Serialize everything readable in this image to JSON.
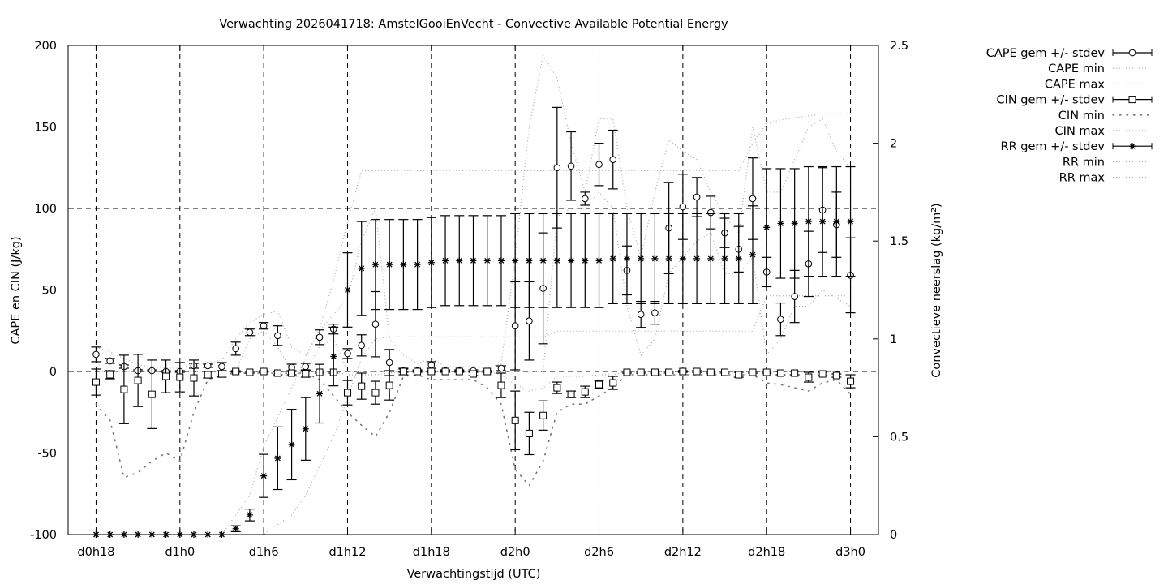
{
  "chart_data": {
    "type": "line",
    "title": "Verwachting 2026041718: AmstelGooiEnVecht - Convective Available Potential Energy",
    "xlabel": "Verwachtingstijd (UTC)",
    "ylabel": "CAPE en CIN (J/kg)",
    "y2label": "Convectieve neerslag (kg/m²)",
    "xlim": [
      16,
      74
    ],
    "ylim": [
      -100,
      200
    ],
    "y2lim": [
      0,
      2.5
    ],
    "grid": true,
    "legend_position": "outside-top-right",
    "x_ticks": [
      {
        "value": 18,
        "label": "d0h18"
      },
      {
        "value": 24,
        "label": "d1h0"
      },
      {
        "value": 30,
        "label": "d1h6"
      },
      {
        "value": 36,
        "label": "d1h12"
      },
      {
        "value": 42,
        "label": "d1h18"
      },
      {
        "value": 48,
        "label": "d2h0"
      },
      {
        "value": 54,
        "label": "d2h6"
      },
      {
        "value": 60,
        "label": "d2h12"
      },
      {
        "value": 66,
        "label": "d2h18"
      },
      {
        "value": 72,
        "label": "d3h0"
      }
    ],
    "y_ticks": [
      "-100",
      "-50",
      "0",
      "50",
      "100",
      "150",
      "200"
    ],
    "y2_ticks": [
      "0",
      "0.5",
      "1",
      "1.5",
      "2",
      "2.5"
    ],
    "x": [
      18,
      19,
      20,
      21,
      22,
      23,
      24,
      25,
      26,
      27,
      28,
      29,
      30,
      31,
      32,
      33,
      34,
      35,
      36,
      37,
      38,
      39,
      40,
      41,
      42,
      43,
      44,
      45,
      46,
      47,
      48,
      49,
      50,
      51,
      52,
      53,
      54,
      55,
      56,
      57,
      58,
      59,
      60,
      61,
      62,
      63,
      64,
      65,
      66,
      67,
      68,
      69,
      70,
      71,
      72
    ],
    "series": [
      {
        "name": "CAPE gem +/- stdev",
        "axis": "y",
        "style": "circle-errorbar",
        "values": [
          10.5,
          6.5,
          3,
          0.5,
          0.5,
          0,
          0,
          3.5,
          3.5,
          3,
          14,
          24,
          28,
          22,
          2.5,
          3,
          21,
          26,
          11,
          16,
          29,
          5.5,
          0.5,
          0.5,
          4,
          0.5,
          0.5,
          0.5,
          0,
          2,
          28,
          31,
          51,
          125,
          126,
          106,
          127,
          130,
          62,
          35,
          36,
          88,
          101,
          107,
          97.5,
          85,
          75,
          106,
          61,
          32,
          46,
          66,
          99,
          90,
          59
        ],
        "stdev": [
          4.5,
          1.5,
          1,
          0.5,
          0.5,
          0.5,
          0.5,
          1.5,
          1,
          2.5,
          4,
          2,
          2,
          6,
          2,
          2,
          4.5,
          3,
          3,
          6.5,
          20,
          8,
          1,
          0.5,
          2,
          0.5,
          0.5,
          0.5,
          0.5,
          1.5,
          27,
          24,
          34,
          37,
          21,
          4,
          13,
          18,
          15,
          8,
          7,
          28,
          20,
          12,
          10,
          9,
          14,
          25,
          9,
          10,
          16,
          20,
          26,
          20,
          23
        ]
      },
      {
        "name": "CAPE min",
        "axis": "y",
        "style": "dotted",
        "values": [
          0,
          0,
          0,
          0,
          0,
          0,
          0,
          0,
          0,
          0,
          0,
          20,
          25,
          15,
          0,
          0,
          15,
          20,
          0,
          0,
          0,
          0,
          0,
          0,
          0,
          0,
          0,
          0,
          0,
          0,
          0,
          0,
          0,
          95,
          100,
          100,
          110,
          100,
          40,
          10,
          20,
          60,
          70,
          80,
          85,
          60,
          60,
          70,
          10,
          20,
          40,
          40,
          50,
          45,
          40
        ]
      },
      {
        "name": "CAPE max",
        "axis": "y",
        "style": "dotted",
        "values": [
          15,
          12,
          8,
          4,
          3,
          2,
          2,
          5,
          5,
          7,
          20,
          30,
          35,
          37,
          15,
          10,
          25,
          35,
          45,
          80,
          100,
          20,
          10,
          5,
          8,
          3,
          3,
          3,
          2,
          5,
          70,
          150,
          194,
          180,
          140,
          110,
          155,
          155,
          100,
          70,
          110,
          142,
          135,
          130,
          110,
          95,
          85,
          150,
          110,
          110,
          130,
          150,
          155,
          135,
          125
        ]
      },
      {
        "name": "CIN gem +/- stdev",
        "axis": "y",
        "style": "square-errorbar",
        "values": [
          -6.5,
          -2,
          -11,
          -5.5,
          -14,
          -3,
          -3.5,
          -4,
          -2,
          -1.5,
          0,
          -0.5,
          0,
          -1,
          -1,
          -1.5,
          -0.5,
          -0.5,
          -13,
          -9,
          -13,
          -8.5,
          0,
          0,
          0,
          0,
          0,
          -1.5,
          0,
          -8.5,
          -30,
          -38,
          -27,
          -10,
          -14,
          -12.5,
          -8,
          -7,
          -0.5,
          -0.5,
          -0.5,
          -0.5,
          0,
          0,
          -0.5,
          -0.5,
          -2,
          -0.5,
          -0.5,
          -1,
          -1,
          -3.5,
          -1.5,
          -2.5,
          -6
        ],
        "stdev": [
          8,
          2.5,
          21,
          16,
          21,
          10,
          9,
          11,
          2,
          2,
          0.5,
          0.5,
          0.5,
          1,
          1,
          2,
          0.5,
          0.5,
          7.5,
          8,
          7,
          9,
          2,
          0.5,
          0.5,
          0.5,
          0.5,
          1,
          0.5,
          7.5,
          18,
          13,
          9,
          3.5,
          2,
          3.5,
          2.5,
          4,
          0.5,
          0.5,
          0.5,
          0.5,
          0.5,
          0.5,
          0.5,
          0.5,
          1.5,
          0.5,
          0.5,
          1,
          1,
          3,
          1,
          1,
          4
        ]
      },
      {
        "name": "CIN min",
        "axis": "y",
        "style": "dotted-dark",
        "values": [
          -20,
          -30,
          -65,
          -62,
          -55,
          -50,
          -55,
          -25,
          -5,
          -2,
          -1,
          -1,
          -1,
          -1,
          -1,
          -1,
          -5,
          -15,
          -25,
          -33,
          -40,
          -25,
          -3,
          -2,
          -5,
          -5,
          -5,
          -5,
          -10,
          -20,
          -60,
          -70,
          -55,
          -25,
          -20,
          -20,
          -15,
          -10,
          -2,
          -2,
          -2,
          -2,
          -2,
          -2,
          -2,
          -2,
          -2,
          -2,
          -7,
          -8,
          -10,
          -12,
          -7,
          -5,
          -14
        ]
      },
      {
        "name": "CIN max",
        "axis": "y",
        "style": "dotted",
        "values": [
          0,
          0,
          0,
          0,
          0,
          0,
          0,
          0,
          0,
          0,
          0,
          0,
          0,
          0,
          0,
          0,
          0,
          0,
          -2,
          -2,
          -2,
          -1,
          0,
          0,
          0,
          0,
          0,
          0,
          0,
          -2,
          -8,
          -12,
          -10,
          -3,
          -3,
          -3,
          -2,
          -2,
          0,
          0,
          0,
          0,
          0,
          0,
          0,
          0,
          0,
          0,
          0,
          0,
          0,
          0,
          0,
          0,
          0
        ]
      },
      {
        "name": "RR gem +/- stdev",
        "axis": "y2",
        "style": "star-errorbar",
        "values": [
          0,
          0,
          0,
          0,
          0,
          0,
          0,
          0,
          0,
          0,
          0.03,
          0.1,
          0.3,
          0.39,
          0.46,
          0.54,
          0.72,
          0.91,
          1.25,
          1.36,
          1.38,
          1.38,
          1.38,
          1.38,
          1.39,
          1.4,
          1.4,
          1.4,
          1.4,
          1.4,
          1.4,
          1.4,
          1.4,
          1.4,
          1.4,
          1.4,
          1.4,
          1.41,
          1.41,
          1.41,
          1.41,
          1.41,
          1.41,
          1.41,
          1.41,
          1.41,
          1.41,
          1.43,
          1.57,
          1.59,
          1.59,
          1.6,
          1.6,
          1.6,
          1.6
        ],
        "stdev": [
          0,
          0,
          0,
          0,
          0,
          0,
          0,
          0,
          0,
          0,
          0.015,
          0.03,
          0.11,
          0.16,
          0.18,
          0.16,
          0.15,
          0.15,
          0.19,
          0.24,
          0.23,
          0.23,
          0.23,
          0.23,
          0.23,
          0.23,
          0.23,
          0.23,
          0.23,
          0.23,
          0.24,
          0.24,
          0.24,
          0.24,
          0.24,
          0.24,
          0.24,
          0.23,
          0.23,
          0.23,
          0.23,
          0.23,
          0.23,
          0.23,
          0.23,
          0.23,
          0.23,
          0.25,
          0.3,
          0.28,
          0.28,
          0.28,
          0.28,
          0.28,
          0.28
        ]
      },
      {
        "name": "RR min",
        "axis": "y2",
        "style": "dotted",
        "values": [
          0,
          0,
          0,
          0,
          0,
          0,
          0,
          0,
          0,
          0,
          0,
          0,
          0,
          0.05,
          0.1,
          0.2,
          0.35,
          0.5,
          0.7,
          0.9,
          1.0,
          1.01,
          1.01,
          1.01,
          1.01,
          1.01,
          1.01,
          1.01,
          1.01,
          1.01,
          1.01,
          1.01,
          1.01,
          1.04,
          1.04,
          1.04,
          1.04,
          1.04,
          1.04,
          1.04,
          1.04,
          1.04,
          1.04,
          1.04,
          1.04,
          1.04,
          1.04,
          1.04,
          1.22,
          1.22,
          1.22,
          1.22,
          1.22,
          1.22,
          1.22
        ]
      },
      {
        "name": "RR max",
        "axis": "y2",
        "style": "dotted",
        "values": [
          0,
          0,
          0,
          0,
          0,
          0,
          0,
          0,
          0,
          0,
          0.1,
          0.2,
          0.45,
          0.6,
          0.75,
          0.9,
          1.05,
          1.3,
          1.6,
          1.86,
          1.86,
          1.86,
          1.86,
          1.86,
          1.86,
          1.86,
          1.86,
          1.86,
          1.86,
          1.86,
          1.86,
          1.86,
          1.86,
          1.86,
          1.86,
          1.86,
          1.86,
          1.86,
          1.86,
          1.86,
          1.86,
          1.86,
          1.86,
          1.86,
          1.86,
          1.86,
          1.86,
          2.0,
          2.1,
          2.12,
          2.13,
          2.14,
          2.15,
          2.15,
          2.15
        ]
      }
    ]
  }
}
